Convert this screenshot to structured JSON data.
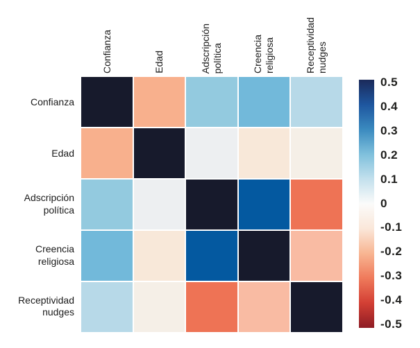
{
  "chart_data": {
    "type": "heatmap",
    "title": "",
    "description": "Correlation matrix heatmap with diverging red-blue colormap",
    "variables": [
      "Confianza",
      "Edad",
      "Adscripción\npolítica",
      "Creencia\nreligiosa",
      "Receptividad\nnudges"
    ],
    "matrix": [
      [
        1.0,
        -0.22,
        0.2,
        0.27,
        0.15
      ],
      [
        -0.22,
        1.0,
        0.03,
        -0.07,
        -0.04
      ],
      [
        0.2,
        0.03,
        1.0,
        0.43,
        -0.3
      ],
      [
        0.27,
        -0.07,
        0.43,
        1.0,
        -0.18
      ],
      [
        0.15,
        -0.04,
        -0.3,
        -0.18,
        1.0
      ]
    ],
    "cell_colors": [
      [
        "#171a2c",
        "#f8b08d",
        "#93cadf",
        "#72b9da",
        "#b7d9e8"
      ],
      [
        "#f8b08d",
        "#171a2c",
        "#edeff1",
        "#f8e8d9",
        "#f5efe7"
      ],
      [
        "#93cadf",
        "#edeff1",
        "#171a2c",
        "#0459a0",
        "#ee7355"
      ],
      [
        "#72b9da",
        "#f8e8d9",
        "#0459a0",
        "#171a2c",
        "#f9bba3"
      ],
      [
        "#b7d9e8",
        "#f5efe7",
        "#ee7355",
        "#f9bba3",
        "#171a2c"
      ]
    ],
    "colorbar": {
      "min": -0.5,
      "max": 0.5,
      "ticks": [
        "0.5",
        "0.4",
        "0.3",
        "0.2",
        "0.1",
        "0",
        "-0.1",
        "-0.2",
        "-0.3",
        "-0.4",
        "-0.5"
      ],
      "gradient_top_to_bottom": [
        "#1b2a5a",
        "#1e569f",
        "#3a8abf",
        "#7fc0dc",
        "#c3e0ed",
        "#fbfbfa",
        "#fae7d9",
        "#f8b592",
        "#ef7a5b",
        "#d33f34",
        "#8e1c24"
      ],
      "position": "right"
    },
    "grid": false,
    "legend_position": "right"
  },
  "colors": {
    "background": "#ffffff",
    "label_text": "#1a1a1a",
    "tick_text": "#1d1d1b",
    "diagonal_cell": "#171a2c"
  }
}
